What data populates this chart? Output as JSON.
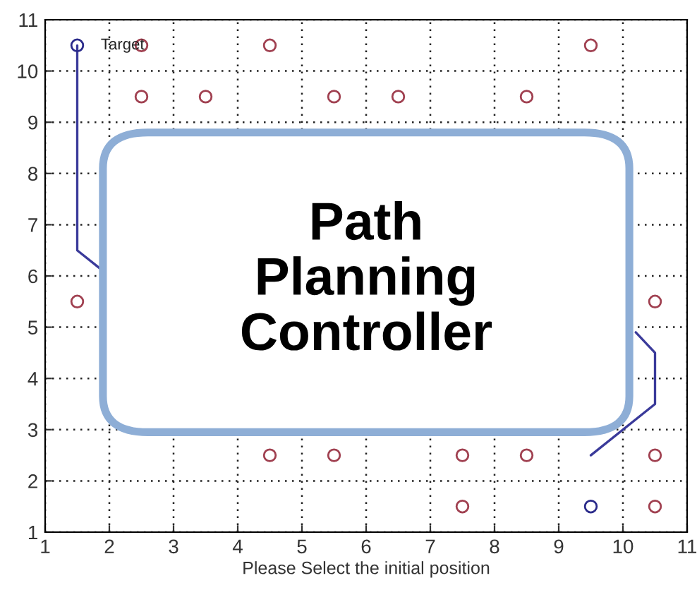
{
  "chart_data": {
    "type": "scatter",
    "xlabel": "Please Select the initial position",
    "xlim": [
      1,
      11
    ],
    "ylim": [
      1,
      11
    ],
    "xticks": [
      1,
      2,
      3,
      4,
      5,
      6,
      7,
      8,
      9,
      10,
      11
    ],
    "yticks": [
      1,
      2,
      3,
      4,
      5,
      6,
      7,
      8,
      9,
      10,
      11
    ],
    "grid": true,
    "series": [
      {
        "type": "line",
        "color": "#3a3a9a",
        "x": [
          1.5,
          1.5,
          1.85,
          null,
          10.2,
          10.5,
          10.5,
          9.5
        ],
        "values": [
          10.5,
          6.5,
          6.15,
          null,
          4.9,
          4.5,
          3.5,
          2.5
        ]
      },
      {
        "marker": "circle",
        "color": "#a04050",
        "x": [
          2.5,
          4.5,
          9.5,
          2.5,
          3.5,
          5.5,
          6.5,
          8.5,
          1.5,
          10.5,
          4.5,
          5.5,
          7.5,
          8.5,
          10.5,
          7.5,
          10.5
        ],
        "values": [
          10.5,
          10.5,
          10.5,
          9.5,
          9.5,
          9.5,
          9.5,
          9.5,
          5.5,
          5.5,
          2.5,
          2.5,
          2.5,
          2.5,
          2.5,
          1.5,
          1.5
        ]
      },
      {
        "marker": "circle",
        "color": "#2a2a8a",
        "x": [
          1.5,
          9.5
        ],
        "values": [
          10.5,
          1.5
        ]
      }
    ],
    "annotations": [
      {
        "text": "Target",
        "x": 1.5,
        "y": 10.5
      },
      "Path Planning Controller"
    ]
  }
}
